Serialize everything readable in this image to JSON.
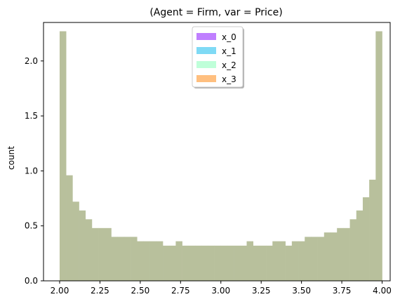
{
  "chart_data": {
    "type": "bar",
    "title": "(Agent = Firm, var = Price)",
    "xlabel": "",
    "ylabel": "count",
    "xlim": [
      1.9,
      4.05
    ],
    "ylim": [
      0.0,
      2.35
    ],
    "xticks": [
      "2.00",
      "2.25",
      "2.50",
      "2.75",
      "3.00",
      "3.25",
      "3.50",
      "3.75",
      "4.00"
    ],
    "xtick_values": [
      2.0,
      2.25,
      2.5,
      2.75,
      3.0,
      3.25,
      3.5,
      3.75,
      4.0
    ],
    "yticks": [
      "0.0",
      "0.5",
      "1.0",
      "1.5",
      "2.0"
    ],
    "ytick_values": [
      0.0,
      0.5,
      1.0,
      1.5,
      2.0
    ],
    "grid": false,
    "legend_position": "top-center",
    "bin_start": 2.0,
    "bin_width": 0.04,
    "bin_values": [
      2.27,
      0.96,
      0.72,
      0.64,
      0.56,
      0.48,
      0.48,
      0.48,
      0.4,
      0.4,
      0.4,
      0.4,
      0.36,
      0.36,
      0.36,
      0.36,
      0.32,
      0.32,
      0.36,
      0.32,
      0.32,
      0.32,
      0.32,
      0.32,
      0.32,
      0.32,
      0.32,
      0.32,
      0.32,
      0.36,
      0.32,
      0.32,
      0.32,
      0.36,
      0.36,
      0.32,
      0.36,
      0.36,
      0.4,
      0.4,
      0.4,
      0.44,
      0.44,
      0.48,
      0.48,
      0.56,
      0.64,
      0.76,
      0.92,
      2.27
    ],
    "series": [
      {
        "name": "x_0",
        "color": "#8000ff"
      },
      {
        "name": "x_1",
        "color": "#00b5eb"
      },
      {
        "name": "x_2",
        "color": "#80ffb4"
      },
      {
        "name": "x_3",
        "color": "#ff8000"
      }
    ],
    "blended_bar_color": "#b8c09c"
  }
}
